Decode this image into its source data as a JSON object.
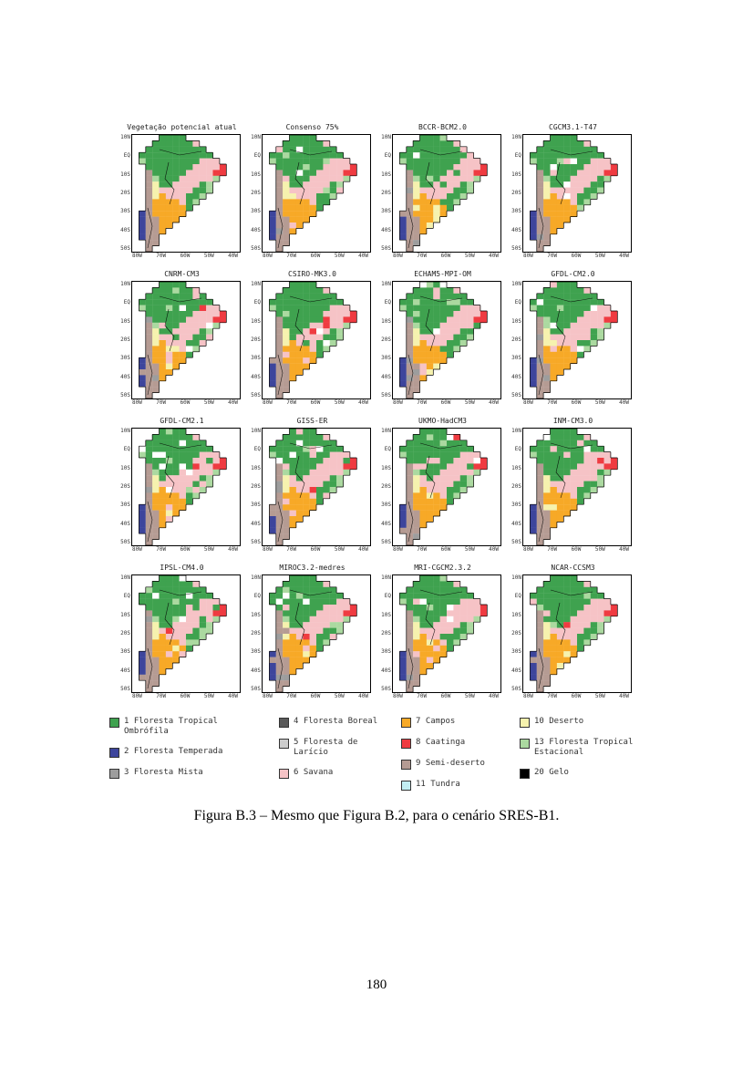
{
  "page": {
    "number": "180",
    "caption": "Figura B.3 – Mesmo que Figura B.2, para o cenário SRES-B1."
  },
  "figure": {
    "panels": [
      {
        "title": "Vegetação potencial atual"
      },
      {
        "title": "Consenso 75%"
      },
      {
        "title": "BCCR-BCM2.0"
      },
      {
        "title": "CGCM3.1-T47"
      },
      {
        "title": "CNRM-CM3"
      },
      {
        "title": "CSIRO-MK3.0"
      },
      {
        "title": "ECHAM5-MPI-OM"
      },
      {
        "title": "GFDL-CM2.0"
      },
      {
        "title": "GFDL-CM2.1"
      },
      {
        "title": "GISS-ER"
      },
      {
        "title": "UKMO-HadCM3"
      },
      {
        "title": "INM-CM3.0"
      },
      {
        "title": "IPSL-CM4.0"
      },
      {
        "title": "MIROC3.2-medres"
      },
      {
        "title": "MRI-CGCM2.3.2"
      },
      {
        "title": "NCAR-CCSM3"
      }
    ],
    "axis": {
      "y_ticks": [
        "10N",
        "EQ",
        "10S",
        "20S",
        "30S",
        "40S",
        "50S"
      ],
      "x_ticks": [
        "80W",
        "70W",
        "60W",
        "50W",
        "40W"
      ]
    },
    "map_grid": [
      "....GGGG........",
      "...GGGGGGP......",
      "..GGGGGGGGG.....",
      ".GGGGGGGGGGG....",
      ".gGGGGGGGGPPP...",
      "..GGGGGGGPPPPR..",
      "..TGGGGGPPPPRR..",
      "..TgGGGPPPPPg...",
      "..TYGGPPPPGg....",
      "..TYPPPPPGGg....",
      "..TYOPPPGGg.....",
      "..TOOOOPGg......",
      "..TOOOOOG.......",
      ".BTOOOOO........",
      ".BTTOOO.........",
      ".BTTOO..........",
      ".BTTO...........",
      ".BTT............",
      "..TT............",
      "..T............."
    ],
    "palette": {
      "G": "#3fa24f",
      "g": "#abd9a0",
      "P": "#f6c3c6",
      "R": "#ef3b41",
      "O": "#f7a927",
      "T": "#b59b93",
      "B": "#3d459c",
      "M": "#9d9d9d",
      "Y": "#f6f2ae",
      "W": "#ffffff"
    },
    "map_variants": {
      "G": [
        "P",
        "g",
        "W",
        "G",
        "G"
      ],
      "P": [
        "G",
        "W",
        "R",
        "P"
      ],
      "g": [
        "G",
        "P"
      ],
      "O": [
        "P",
        "Y",
        "O"
      ],
      "T": [
        "M",
        "T",
        "T"
      ],
      "R": [
        "P",
        "R"
      ],
      "Y": [
        "T",
        "Y"
      ],
      "B": [
        "T",
        "B"
      ]
    },
    "legend": {
      "columns": [
        {
          "items": [
            {
              "label": "1 Floresta Tropical\nOmbrófila",
              "color": "#3fa24f"
            },
            {
              "label": "2 Floresta Temperada",
              "color": "#3d459c"
            },
            {
              "label": "3 Floresta Mista",
              "color": "#9d9d9d"
            }
          ]
        },
        {
          "items": [
            {
              "label": "4 Floresta Boreal",
              "color": "#5a5a5a"
            },
            {
              "label": "5 Floresta de\nLarício",
              "color": "#cccccc"
            },
            {
              "label": "6 Savana",
              "color": "#f6c3c6"
            }
          ]
        },
        {
          "items": [
            {
              "label": "7 Campos",
              "color": "#f7a927"
            },
            {
              "label": "8 Caatinga",
              "color": "#ef3b41"
            },
            {
              "label": "9 Semi-deserto",
              "color": "#b59b93"
            },
            {
              "label": "11 Tundra",
              "color": "#c2eef2"
            }
          ]
        },
        {
          "items": [
            {
              "label": "10 Deserto",
              "color": "#f6f2ae"
            },
            {
              "label": "13 Floresta Tropical\nEstacional",
              "color": "#abd9a0"
            },
            {
              "label": "20 Gelo",
              "color": "#000000"
            }
          ]
        }
      ]
    }
  }
}
